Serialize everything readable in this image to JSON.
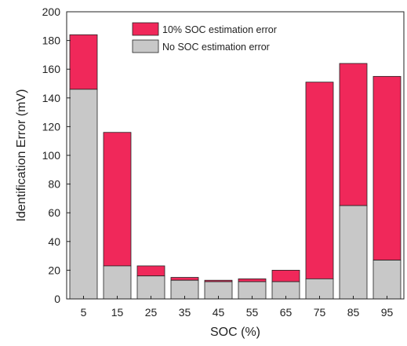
{
  "chart_data": {
    "type": "bar",
    "stacked": true,
    "categories": [
      "5",
      "15",
      "25",
      "35",
      "45",
      "55",
      "65",
      "75",
      "85",
      "95"
    ],
    "series": [
      {
        "name": "No SOC estimation error",
        "color": "#c8c8c8",
        "values": [
          146,
          23,
          16,
          13,
          12,
          12,
          12,
          14,
          65,
          27
        ]
      },
      {
        "name": "10% SOC estimation error",
        "color": "#f0285a",
        "totals": [
          184,
          116,
          23,
          15,
          13,
          14,
          20,
          151,
          164,
          155
        ]
      }
    ],
    "xlabel": "SOC (%)",
    "ylabel": "Identification Error (mV)",
    "ylim": [
      0,
      200
    ],
    "yticks": [
      "0",
      "20",
      "40",
      "60",
      "80",
      "100",
      "120",
      "140",
      "160",
      "180",
      "200"
    ],
    "grid": false,
    "legend_position": "top"
  }
}
